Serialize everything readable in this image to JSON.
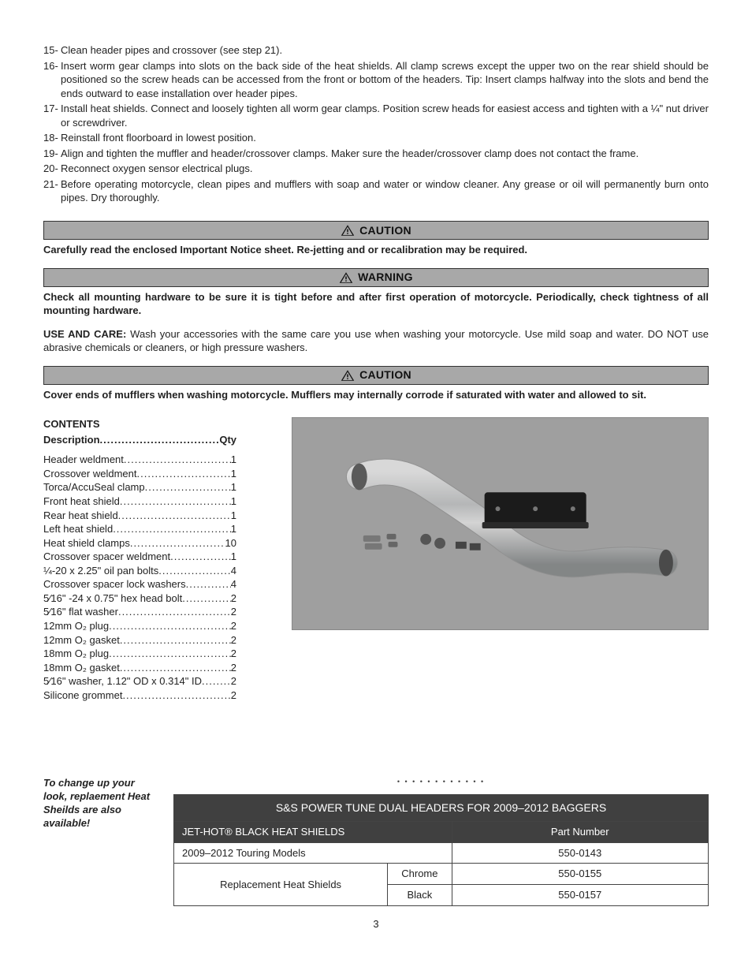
{
  "steps": [
    {
      "n": "15-",
      "t": "Clean header pipes and crossover (see step 21)."
    },
    {
      "n": "16-",
      "t": "Insert worm gear clamps into slots on the back side of the heat shields. All clamp screws except the upper two on the rear shield should be positioned so the screw heads can be accessed from the front or bottom of the headers. Tip: Insert clamps halfway into the slots and bend the ends outward to ease installation over header pipes."
    },
    {
      "n": "17-",
      "t": "Install heat shields. Connect and loosely tighten all worm gear clamps. Position screw heads for easiest access and tighten with a ¼\" nut driver or screwdriver."
    },
    {
      "n": "18-",
      "t": "Reinstall front floorboard in lowest position."
    },
    {
      "n": "19-",
      "t": "Align and tighten the muffler and header/crossover clamps. Maker sure the header/crossover clamp does not contact the frame."
    },
    {
      "n": "20-",
      "t": "Reconnect oxygen sensor electrical plugs."
    },
    {
      "n": "21-",
      "t": "Before operating motorcycle, clean pipes and mufflers with soap and water or window cleaner. Any grease or oil will permanently burn onto pipes. Dry thoroughly."
    }
  ],
  "banners": {
    "caution1": {
      "label": "CAUTION",
      "msg": "Carefully read the enclosed Important Notice sheet. Re-jetting and or recalibration may be required."
    },
    "warning": {
      "label": "WARNING",
      "msg": "Check all mounting hardware to be sure it is tight before and after first operation of motorcycle. Periodically, check tightness of all mounting hardware."
    },
    "caution2": {
      "label": "CAUTION",
      "msg": "Cover ends of mufflers when washing motorcycle. Mufflers may internally corrode if saturated with water and allowed to sit."
    }
  },
  "use_care": {
    "lead": "USE AND CARE:",
    "body": " Wash your accessories with the same care you use when washing your motorcycle. Use mild soap and water. DO NOT use abrasive chemicals or cleaners, or high pressure washers."
  },
  "contents": {
    "title": "CONTENTS",
    "header_desc": "Description",
    "header_qty": "Qty",
    "items": [
      {
        "d": "Header weldment ",
        "q": "1"
      },
      {
        "d": "Crossover weldment ",
        "q": "1"
      },
      {
        "d": "Torca/AccuSeal clamp ",
        "q": "1"
      },
      {
        "d": "Front heat shield ",
        "q": "1"
      },
      {
        "d": "Rear heat shield ",
        "q": "1"
      },
      {
        "d": "Left heat shield ",
        "q": "1"
      },
      {
        "d": "Heat shield clamps ",
        "q": " 10"
      },
      {
        "d": "Crossover spacer weldment ",
        "q": "1"
      },
      {
        "d": "¼-20 x 2.25\" oil pan bolts ",
        "q": "4"
      },
      {
        "d": "Crossover spacer lock washers ",
        "q": "4"
      },
      {
        "d": "5⁄16\" -24 x 0.75\" hex head bolt ",
        "q": "2"
      },
      {
        "d": "5⁄16\" flat washer",
        "q": "2"
      },
      {
        "d": "12mm O₂ plug",
        "q": "2"
      },
      {
        "d": "12mm O₂ gasket",
        "q": "2"
      },
      {
        "d": "18mm O₂ plug",
        "q": "2"
      },
      {
        "d": "18mm O₂ gasket",
        "q": "2"
      },
      {
        "d": "5⁄16\" washer, 1.12\" OD x 0.314\" ID ",
        "q": "2"
      },
      {
        "d": "Silicone grommet ",
        "q": "2"
      }
    ]
  },
  "promo": {
    "blurb": "To change up your look, replaement Heat Sheilds are also available!",
    "divider": "• • •  • • •  • • •  • • •",
    "table_title": "S&S POWER TUNE DUAL HEADERS FOR 2009–2012 BAGGERS",
    "col_left": "JET-HOT® BLACK HEAT SHIELDS",
    "col_right": "Part Number",
    "rows": [
      {
        "a": "2009–2012 Touring Models",
        "b": "",
        "c": "550-0143"
      },
      {
        "a": "Replacement Heat Shields",
        "b": "Chrome",
        "c": "550-0155"
      },
      {
        "a": "",
        "b": "Black",
        "c": "550-0157"
      }
    ]
  },
  "page_number": "3",
  "colors": {
    "banner_bg": "#a8a8a8",
    "banner_border": "#333333",
    "table_dark_bg": "#404040",
    "figure_bg": "#9f9f9f"
  }
}
